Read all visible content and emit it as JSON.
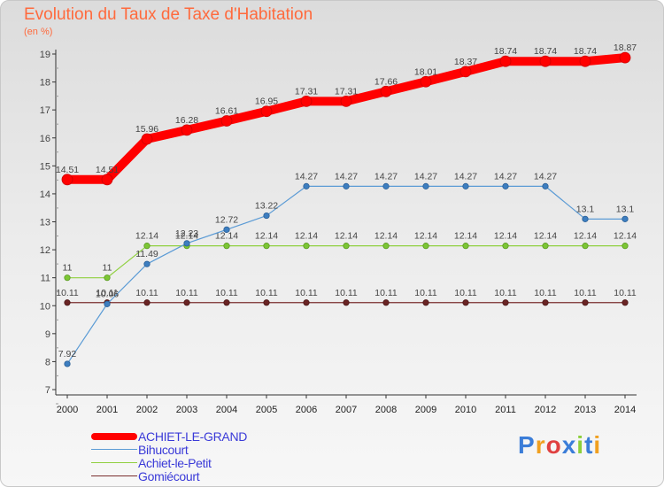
{
  "title": "Evolution du Taux de Taxe d'Habitation",
  "subtitle": "(en %)",
  "brand": "Proxiti",
  "colors": {
    "ACHIET-LE-GRAND": "#ff0000",
    "Bihucourt": "#5b9bd5",
    "Achiet-le-Petit": "#90d040",
    "Gomiécourt": "#7a2e2e",
    "text": "#ff6a3d",
    "legend_text": "#3a3ad8"
  },
  "chart_data": {
    "type": "line",
    "title": "Evolution du Taux de Taxe d'Habitation",
    "ylabel": "(en %)",
    "xlabel": "",
    "x": [
      "2000",
      "2001",
      "2002",
      "2003",
      "2004",
      "2005",
      "2006",
      "2007",
      "2008",
      "2009",
      "2010",
      "2011",
      "2012",
      "2013",
      "2014"
    ],
    "ylim": [
      7,
      19
    ],
    "yticks": [
      7,
      8,
      9,
      10,
      11,
      12,
      13,
      14,
      15,
      16,
      17,
      18,
      19
    ],
    "grid": false,
    "series": [
      {
        "name": "ACHIET-LE-GRAND",
        "values": [
          14.51,
          14.51,
          15.96,
          16.28,
          16.61,
          16.95,
          17.31,
          17.31,
          17.66,
          18.01,
          18.37,
          18.74,
          18.74,
          18.74,
          18.87
        ],
        "labels": [
          "14.51",
          "14.51",
          "15.96",
          "16.28",
          "16.61",
          "16.95",
          "17.31",
          "17.31",
          "17.66",
          "18.01",
          "18.37",
          "18.74",
          "18.74",
          "18.74",
          "18.87"
        ]
      },
      {
        "name": "Bihucourt",
        "values": [
          7.92,
          10.06,
          11.49,
          12.23,
          12.72,
          13.22,
          14.27,
          14.27,
          14.27,
          14.27,
          14.27,
          14.27,
          14.27,
          13.1,
          13.1
        ],
        "labels": [
          "7.92",
          "10.06",
          "11.49",
          "12.23",
          "12.72",
          "13.22",
          "14.27",
          "14.27",
          "14.27",
          "14.27",
          "14.27",
          "14.27",
          "14.27",
          "13.1",
          "13.1"
        ]
      },
      {
        "name": "Achiet-le-Petit",
        "values": [
          11,
          11,
          12.14,
          12.14,
          12.14,
          12.14,
          12.14,
          12.14,
          12.14,
          12.14,
          12.14,
          12.14,
          12.14,
          12.14,
          12.14
        ],
        "labels": [
          "11",
          "11",
          "12.14",
          "12.14",
          "12.14",
          "12.14",
          "12.14",
          "12.14",
          "12.14",
          "12.14",
          "12.14",
          "12.14",
          "12.14",
          "12.14",
          "12.14"
        ]
      },
      {
        "name": "Gomiécourt",
        "values": [
          10.11,
          10.11,
          10.11,
          10.11,
          10.11,
          10.11,
          10.11,
          10.11,
          10.11,
          10.11,
          10.11,
          10.11,
          10.11,
          10.11,
          10.11
        ],
        "labels": [
          "10.11",
          "10.11",
          "10.11",
          "10.11",
          "10.11",
          "10.11",
          "10.11",
          "10.11",
          "10.11",
          "10.11",
          "10.11",
          "10.11",
          "10.11",
          "10.11",
          "10.11"
        ]
      }
    ],
    "legend": [
      "ACHIET-LE-GRAND",
      "Bihucourt",
      "Achiet-le-Petit",
      "Gomiécourt"
    ]
  }
}
